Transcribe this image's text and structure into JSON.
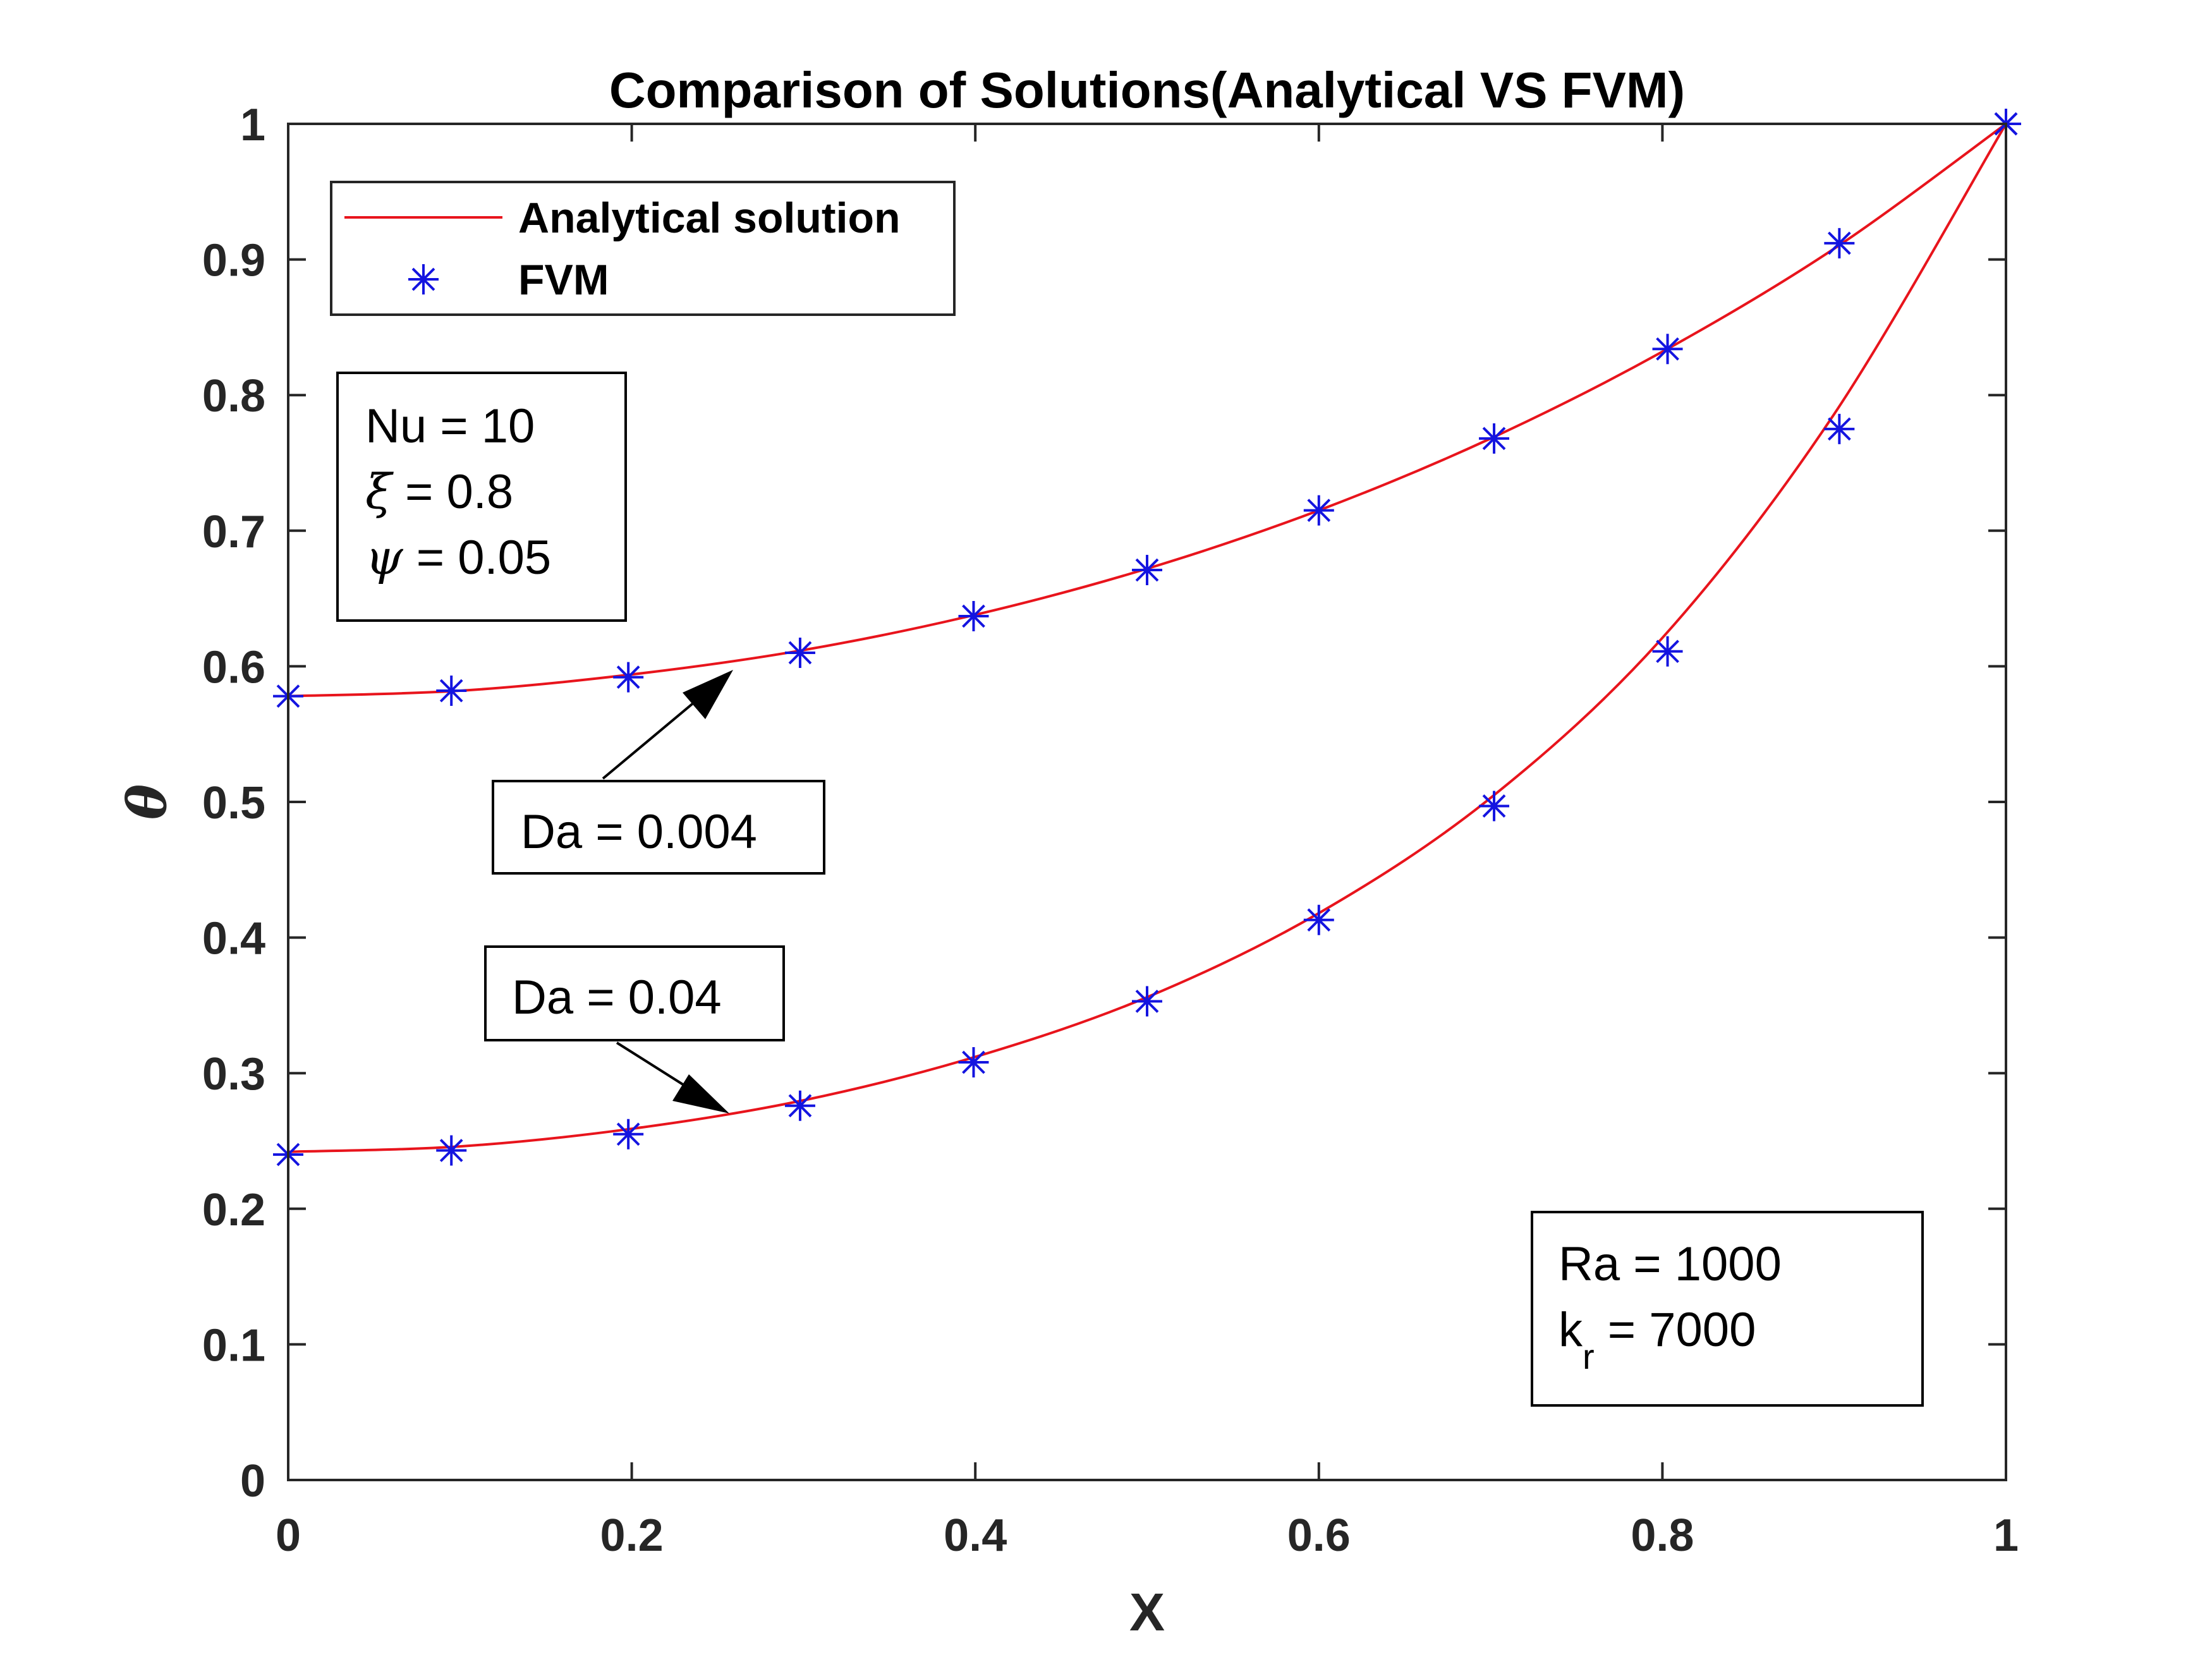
{
  "chart_data": {
    "type": "line",
    "title": "Comparison of Solutions(Analytical VS FVM)",
    "xlabel": "X",
    "ylabel": "θ",
    "xlim": [
      0,
      1
    ],
    "ylim": [
      0,
      1
    ],
    "x_ticks": [
      "0",
      "0.2",
      "0.4",
      "0.6",
      "0.8",
      "1"
    ],
    "y_ticks": [
      "0",
      "0.1",
      "0.2",
      "0.3",
      "0.4",
      "0.5",
      "0.6",
      "0.7",
      "0.8",
      "0.9",
      "1"
    ],
    "grid": false,
    "legend": {
      "placement": "top-left",
      "entries": [
        {
          "label": "Analytical solution",
          "style": "line",
          "color": "#e8141c"
        },
        {
          "label": "FVM",
          "style": "asterisk",
          "color": "#1414e0"
        }
      ]
    },
    "series": [
      {
        "name": "Analytical solution",
        "curve": "Da = 0.004",
        "style": "line",
        "color": "#e8141c",
        "x": [
          0,
          0.1,
          0.2,
          0.3,
          0.4,
          0.5,
          0.6,
          0.7,
          0.8,
          0.9,
          1
        ],
        "y": [
          0.578,
          0.582,
          0.594,
          0.612,
          0.638,
          0.672,
          0.715,
          0.768,
          0.832,
          0.908,
          1.0
        ]
      },
      {
        "name": "Analytical solution",
        "curve": "Da = 0.04",
        "style": "line",
        "color": "#e8141c",
        "x": [
          0,
          0.1,
          0.2,
          0.3,
          0.4,
          0.5,
          0.6,
          0.7,
          0.8,
          0.9,
          1
        ],
        "y": [
          0.242,
          0.246,
          0.259,
          0.28,
          0.312,
          0.356,
          0.418,
          0.503,
          0.621,
          0.786,
          1.0
        ]
      },
      {
        "name": "FVM",
        "curve": "Da = 0.004",
        "style": "asterisk",
        "color": "#1414e0",
        "x": [
          0,
          0.095,
          0.198,
          0.298,
          0.399,
          0.5,
          0.6,
          0.702,
          0.803,
          0.903,
          1
        ],
        "y": [
          0.578,
          0.582,
          0.592,
          0.61,
          0.637,
          0.671,
          0.715,
          0.768,
          0.834,
          0.912,
          1.0
        ]
      },
      {
        "name": "FVM",
        "curve": "Da = 0.04",
        "style": "asterisk",
        "color": "#1414e0",
        "x": [
          0,
          0.095,
          0.198,
          0.298,
          0.399,
          0.5,
          0.6,
          0.702,
          0.803,
          0.903,
          1
        ],
        "y": [
          0.24,
          0.243,
          0.255,
          0.276,
          0.308,
          0.353,
          0.413,
          0.497,
          0.611,
          0.775,
          1.0
        ]
      }
    ],
    "annotations": {
      "params_box": [
        "Nu = 10",
        "ξ = 0.8",
        "ψ = 0.05"
      ],
      "da_high": {
        "text": "Da = 0.004",
        "points_to": [
          0.258,
          0.6
        ]
      },
      "da_low": {
        "text": "Da = 0.04",
        "points_to": [
          0.258,
          0.27
        ]
      },
      "ra_box": {
        "ra": "Ra = 1000",
        "kr_base": "k",
        "kr_sub": "r",
        "kr_value": " = 7000"
      }
    }
  }
}
